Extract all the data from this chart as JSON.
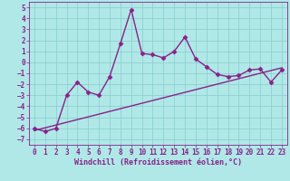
{
  "title": "",
  "xlabel": "Windchill (Refroidissement éolien,°C)",
  "ylabel": "",
  "background_color": "#b0e8e8",
  "grid_color": "#88cccc",
  "line_color": "#882288",
  "xlim": [
    -0.5,
    23.5
  ],
  "ylim": [
    -7.5,
    5.5
  ],
  "xticks": [
    0,
    1,
    2,
    3,
    4,
    5,
    6,
    7,
    8,
    9,
    10,
    11,
    12,
    13,
    14,
    15,
    16,
    17,
    18,
    19,
    20,
    21,
    22,
    23
  ],
  "yticks": [
    -7,
    -6,
    -5,
    -4,
    -3,
    -2,
    -1,
    0,
    1,
    2,
    3,
    4,
    5
  ],
  "jagged_x": [
    0,
    1,
    2,
    3,
    4,
    5,
    6,
    7,
    8,
    9,
    10,
    11,
    12,
    13,
    14,
    15,
    16,
    17,
    18,
    19,
    20,
    21,
    22,
    23
  ],
  "jagged_y": [
    -6.0,
    -6.3,
    -6.0,
    -3.0,
    -1.8,
    -2.7,
    -3.0,
    -1.3,
    1.7,
    4.8,
    0.8,
    0.7,
    0.4,
    1.0,
    2.3,
    0.3,
    -0.4,
    -1.1,
    -1.3,
    -1.2,
    -0.7,
    -0.6,
    -1.8,
    -0.7
  ],
  "trend_x": [
    0,
    23
  ],
  "trend_y": [
    -6.2,
    -0.5
  ],
  "marker": "D",
  "marker_size": 2.5,
  "line_width": 1.0,
  "font_family": "monospace",
  "xlabel_fontsize": 6,
  "tick_fontsize": 5.5
}
